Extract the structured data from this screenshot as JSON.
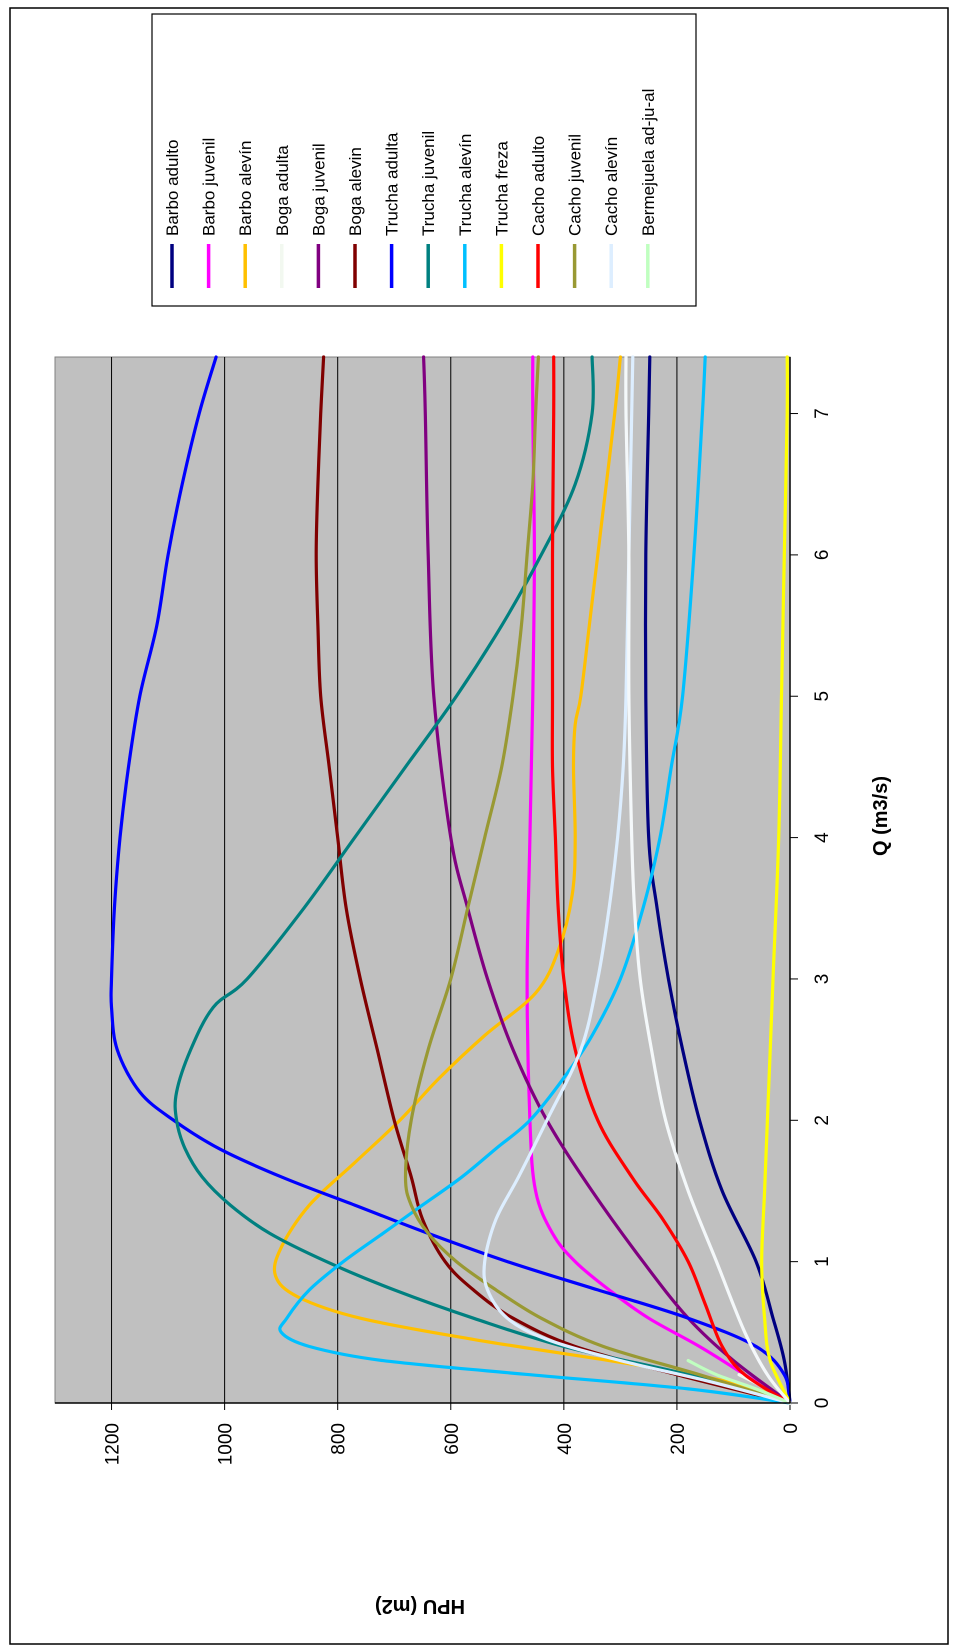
{
  "chart_data": {
    "type": "line",
    "xlabel": "Q (m3/s)",
    "ylabel": "HPU (m2)",
    "xlim": [
      0,
      7.4
    ],
    "ylim": [
      0,
      1300
    ],
    "xticks": [
      "0",
      "1",
      "2",
      "3",
      "4",
      "5",
      "6",
      "7"
    ],
    "yticks": [
      "0",
      "200",
      "400",
      "600",
      "800",
      "1000",
      "1200"
    ],
    "grid": "horizontal",
    "legend": "right",
    "series": [
      {
        "name": "Barbo adulto",
        "color": "#000080",
        "x": [
          0,
          0.3,
          0.6,
          1,
          1.5,
          2,
          2.5,
          3,
          3.5,
          4,
          5,
          6,
          7,
          7.4
        ],
        "y": [
          0,
          10,
          30,
          60,
          120,
          160,
          190,
          215,
          235,
          250,
          255,
          255,
          250,
          248
        ]
      },
      {
        "name": "Barbo juvenil",
        "color": "#FF00FF",
        "x": [
          0,
          0.2,
          0.4,
          0.6,
          0.8,
          1,
          1.2,
          1.5,
          2,
          3,
          4,
          5,
          6,
          7,
          7.4
        ],
        "y": [
          0,
          80,
          160,
          250,
          320,
          380,
          420,
          450,
          460,
          465,
          460,
          455,
          452,
          455,
          455
        ]
      },
      {
        "name": "Barbo alevín",
        "color": "#FFC000",
        "x": [
          0,
          0.1,
          0.2,
          0.3,
          0.45,
          0.6,
          0.75,
          0.9,
          1.1,
          1.4,
          1.7,
          2,
          2.3,
          2.6,
          2.9,
          3.2,
          3.6,
          4,
          4.5,
          4.8,
          5,
          5.5,
          6,
          6.5,
          7,
          7.4
        ],
        "y": [
          0,
          60,
          170,
          320,
          560,
          760,
          870,
          910,
          900,
          850,
          770,
          690,
          620,
          540,
          450,
          410,
          385,
          380,
          383,
          380,
          370,
          355,
          340,
          325,
          310,
          300
        ]
      },
      {
        "name": "Boga adulta",
        "color": "#F2F8F0",
        "x": [
          0,
          0.1,
          0.2
        ],
        "y": [
          0,
          40,
          90
        ]
      },
      {
        "name": "Boga juvenil",
        "color": "#800080",
        "x": [
          0,
          0.3,
          0.6,
          1,
          1.5,
          2,
          2.5,
          3,
          3.5,
          4,
          5,
          6,
          7,
          7.4
        ],
        "y": [
          0,
          100,
          180,
          260,
          350,
          430,
          490,
          535,
          570,
          600,
          630,
          640,
          645,
          648
        ]
      },
      {
        "name": "Boga alevin",
        "color": "#800000",
        "x": [
          0,
          0.2,
          0.4,
          0.6,
          0.8,
          1,
          1.3,
          1.6,
          2,
          2.5,
          3,
          3.5,
          4,
          4.5,
          5,
          5.5,
          6,
          6.5,
          7,
          7.4
        ],
        "y": [
          0,
          200,
          380,
          490,
          560,
          610,
          650,
          670,
          700,
          730,
          760,
          785,
          800,
          815,
          830,
          835,
          838,
          835,
          830,
          825
        ]
      },
      {
        "name": "Trucha adulta",
        "color": "#0000FF",
        "x": [
          0,
          0.2,
          0.4,
          0.6,
          0.8,
          1,
          1.2,
          1.4,
          1.6,
          1.8,
          2,
          2.2,
          2.5,
          2.8,
          3,
          3.5,
          4,
          4.5,
          5,
          5.5,
          6,
          6.5,
          7,
          7.4
        ],
        "y": [
          0,
          10,
          60,
          180,
          340,
          500,
          640,
          770,
          900,
          1010,
          1090,
          1150,
          1190,
          1200,
          1200,
          1195,
          1185,
          1170,
          1150,
          1120,
          1100,
          1075,
          1045,
          1015
        ]
      },
      {
        "name": "Trucha juvenil",
        "color": "#008080",
        "x": [
          0,
          0.2,
          0.4,
          0.6,
          0.8,
          1,
          1.2,
          1.4,
          1.6,
          1.8,
          2,
          2.2,
          2.5,
          2.8,
          3,
          3.5,
          4,
          4.5,
          5,
          5.5,
          6,
          6.5,
          7,
          7.4
        ],
        "y": [
          0,
          180,
          400,
          560,
          700,
          820,
          920,
          990,
          1040,
          1070,
          1085,
          1085,
          1060,
          1020,
          960,
          860,
          770,
          680,
          590,
          510,
          440,
          380,
          350,
          350
        ]
      },
      {
        "name": "Trucha alevín",
        "color": "#00C0FF",
        "x": [
          0,
          0.1,
          0.2,
          0.3,
          0.4,
          0.5,
          0.6,
          0.8,
          1,
          1.2,
          1.4,
          1.6,
          1.8,
          2,
          2.3,
          2.6,
          3,
          3.5,
          4,
          4.5,
          5,
          6,
          7,
          7.4
        ],
        "y": [
          0,
          180,
          460,
          720,
          850,
          900,
          890,
          850,
          790,
          720,
          650,
          580,
          520,
          460,
          400,
          350,
          300,
          260,
          230,
          210,
          190,
          170,
          155,
          150
        ]
      },
      {
        "name": "Trucha freza",
        "color": "#FFFF00",
        "x": [
          0,
          0.3,
          0.6,
          1,
          1.5,
          2,
          3,
          4,
          5,
          6,
          7,
          7.4
        ],
        "y": [
          0,
          35,
          45,
          50,
          45,
          40,
          30,
          20,
          15,
          10,
          5,
          5
        ]
      },
      {
        "name": "Cacho adulto",
        "color": "#FF0000",
        "x": [
          0,
          0.2,
          0.4,
          0.7,
          1,
          1.3,
          1.6,
          2,
          2.5,
          3,
          3.5,
          4,
          4.5,
          5,
          6,
          7,
          7.4
        ],
        "y": [
          0,
          80,
          120,
          150,
          180,
          225,
          280,
          340,
          380,
          400,
          410,
          415,
          420,
          420,
          420,
          418,
          418
        ]
      },
      {
        "name": "Cacho juvenil",
        "color": "#999933",
        "x": [
          0,
          0.2,
          0.4,
          0.6,
          0.8,
          1,
          1.2,
          1.4,
          1.6,
          2,
          2.5,
          3,
          3.5,
          4,
          4.5,
          5,
          5.5,
          6,
          6.5,
          7,
          7.4
        ],
        "y": [
          0,
          160,
          330,
          440,
          520,
          590,
          640,
          670,
          680,
          670,
          640,
          600,
          570,
          540,
          510,
          490,
          475,
          465,
          455,
          450,
          445
        ]
      },
      {
        "name": "Cacho alevín",
        "color": "#DDEEFF",
        "x": [
          0,
          0.15,
          0.3,
          0.45,
          0.6,
          0.8,
          1,
          1.3,
          1.6,
          2,
          2.5,
          3,
          3.5,
          4,
          4.5,
          5,
          6,
          7,
          7.4
        ],
        "y": [
          0,
          140,
          300,
          430,
          500,
          535,
          540,
          520,
          480,
          430,
          370,
          340,
          320,
          305,
          295,
          290,
          285,
          280,
          278
        ]
      },
      {
        "name": "Bermejuela ad-ju-al",
        "color": "#C0FFC0",
        "x": [
          0,
          0.1,
          0.2,
          0.3
        ],
        "y": [
          0,
          60,
          130,
          180
        ]
      },
      {
        "name": "",
        "color": "#F4F8FA",
        "x": [
          0,
          0.2,
          0.5,
          1,
          1.5,
          2,
          2.5,
          3,
          3.5,
          4,
          5,
          6,
          7,
          7.4
        ],
        "y": [
          0,
          40,
          80,
          130,
          180,
          220,
          245,
          265,
          275,
          280,
          285,
          285,
          290,
          290
        ]
      }
    ]
  }
}
